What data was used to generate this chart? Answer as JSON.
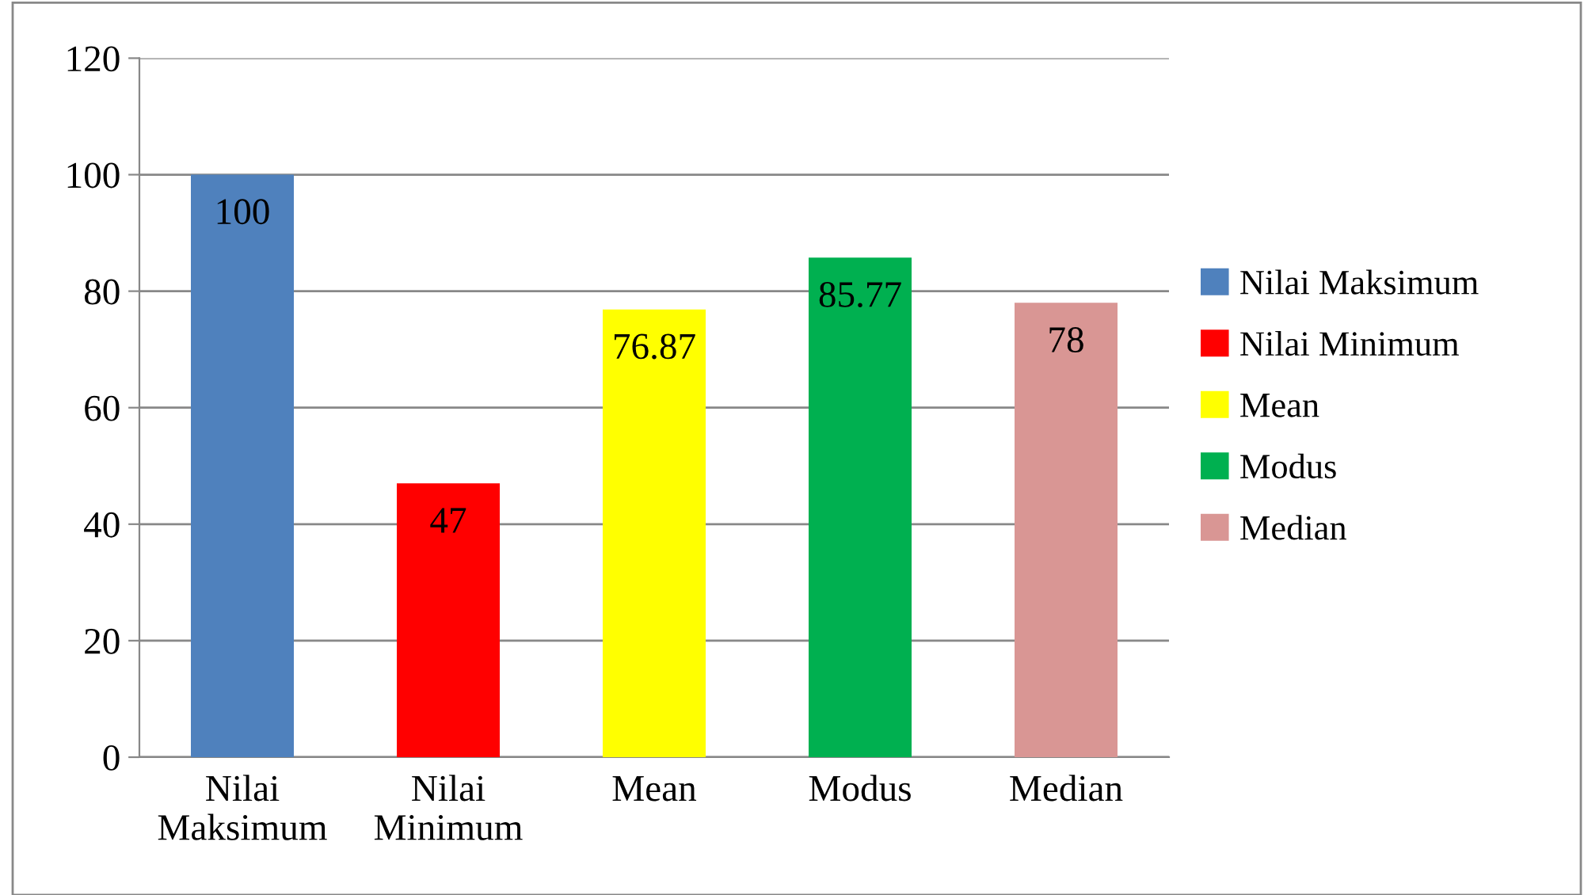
{
  "chart_data": {
    "type": "bar",
    "categories": [
      "Nilai Maksimum",
      "Nilai Minimum",
      "Mean",
      "Modus",
      "Median"
    ],
    "series": [
      {
        "name": "Nilai Maksimum",
        "color": "#4f81bd",
        "values": [
          100,
          null,
          null,
          null,
          null
        ]
      },
      {
        "name": "Nilai Minimum",
        "color": "#ff0000",
        "values": [
          null,
          47,
          null,
          null,
          null
        ]
      },
      {
        "name": "Mean",
        "color": "#ffff00",
        "values": [
          null,
          null,
          76.87,
          null,
          null
        ]
      },
      {
        "name": "Modus",
        "color": "#00b050",
        "values": [
          null,
          null,
          null,
          85.77,
          null
        ]
      },
      {
        "name": "Median",
        "color": "#d99694",
        "values": [
          null,
          null,
          null,
          null,
          78
        ]
      }
    ],
    "ylim": [
      0,
      120
    ],
    "yticks": [
      0,
      20,
      40,
      60,
      80,
      100,
      120
    ],
    "grid": "y",
    "legend": "right",
    "data_labels": true
  }
}
